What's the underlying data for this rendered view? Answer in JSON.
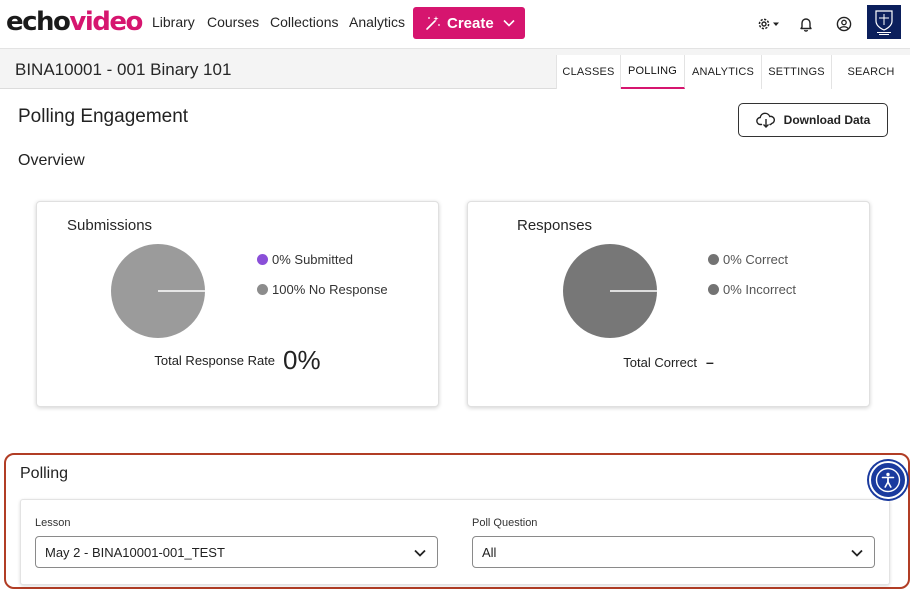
{
  "brand": {
    "part1": "echo",
    "part2": "video"
  },
  "nav": {
    "links": [
      "Library",
      "Courses",
      "Collections",
      "Analytics"
    ],
    "create_label": "Create"
  },
  "course": {
    "title": "BINA10001 - 001 Binary 101",
    "tabs": [
      "CLASSES",
      "POLLING",
      "ANALYTICS",
      "SETTINGS",
      "SEARCH"
    ],
    "active_tab": "POLLING"
  },
  "page": {
    "title": "Polling Engagement",
    "download_label": "Download Data",
    "overview_label": "Overview"
  },
  "submissions": {
    "title": "Submissions",
    "legend": [
      {
        "label": "0% Submitted",
        "color": "#8a4fd8",
        "value": 0
      },
      {
        "label": "100% No Response",
        "color": "#8c8c8c",
        "value": 100
      }
    ],
    "total_label": "Total Response Rate",
    "total_value": "0%"
  },
  "responses": {
    "title": "Responses",
    "legend": [
      {
        "label": "0% Correct",
        "color": "#737373",
        "value": 0
      },
      {
        "label": "0% Incorrect",
        "color": "#737373",
        "value": 0
      }
    ],
    "total_label": "Total Correct",
    "total_value": "–"
  },
  "polling": {
    "title": "Polling",
    "lesson_label": "Lesson",
    "lesson_value": "May 2 - BINA10001-001_TEST",
    "question_label": "Poll Question",
    "question_value": "All"
  },
  "colors": {
    "brand_accent": "#d6156f",
    "pie_submissions": "#9b9b9b",
    "pie_responses": "#777777",
    "highlight_border": "#b13d25",
    "accessibility": "#1a3a9e"
  },
  "icons": [
    "gear-icon",
    "bell-icon",
    "user-icon",
    "university-logo",
    "cloud-download-icon",
    "chevron-down-icon",
    "accessibility-icon",
    "magic-wand-icon"
  ]
}
